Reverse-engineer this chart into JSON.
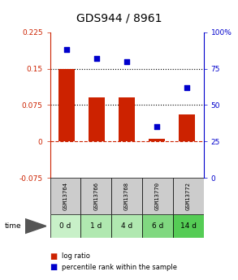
{
  "title": "GDS944 / 8961",
  "categories": [
    "GSM13764",
    "GSM13766",
    "GSM13768",
    "GSM13770",
    "GSM13772"
  ],
  "time_labels": [
    "0 d",
    "1 d",
    "4 d",
    "6 d",
    "14 d"
  ],
  "log_ratio": [
    0.15,
    0.09,
    0.09,
    0.005,
    0.055
  ],
  "percentile_rank": [
    88,
    82,
    80,
    35,
    62
  ],
  "bar_color": "#cc2200",
  "dot_color": "#0000cc",
  "ylim_left": [
    -0.075,
    0.225
  ],
  "ylim_right": [
    0,
    100
  ],
  "yticks_left": [
    -0.075,
    0,
    0.075,
    0.15,
    0.225
  ],
  "yticks_right": [
    0,
    25,
    50,
    75,
    100
  ],
  "ytick_labels_left": [
    "-0.075",
    "0",
    "0.075",
    "0.15",
    "0.225"
  ],
  "ytick_labels_right": [
    "0",
    "25",
    "50",
    "75",
    "100%"
  ],
  "hlines": [
    0.075,
    0.15
  ],
  "zero_line": 0,
  "green_shades": [
    "#c8f0c8",
    "#b0e8b0",
    "#b0e8b0",
    "#80d880",
    "#55cc55"
  ],
  "gsm_bg": "#cccccc",
  "title_fontsize": 10,
  "tick_fontsize": 6.5
}
